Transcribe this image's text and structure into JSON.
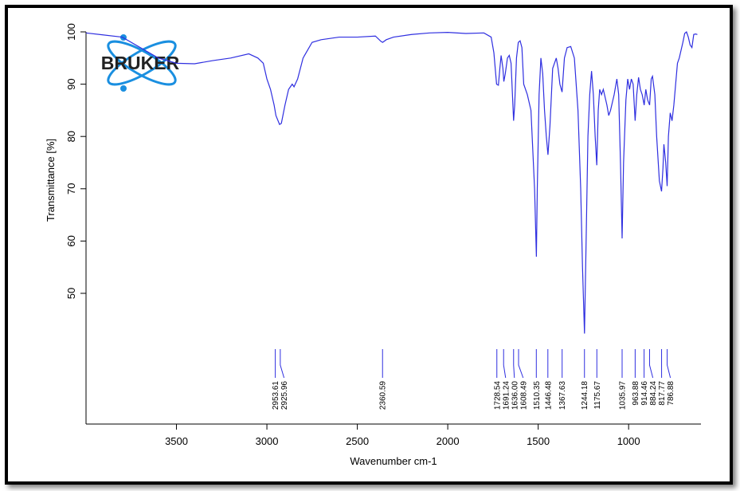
{
  "chart_data": {
    "type": "line",
    "logo_text": "BRUKER",
    "x_label": "Wavenumber cm-1",
    "y_label": "Transmittance [%]",
    "xlim": [
      4000,
      600
    ],
    "ylim": [
      25,
      100
    ],
    "xticks": [
      3500,
      3000,
      2500,
      2000,
      1500,
      1000
    ],
    "yticks": [
      50,
      60,
      70,
      80,
      90,
      100
    ],
    "color": "#2f2fe0",
    "x": [
      4000,
      3800,
      3600,
      3500,
      3400,
      3300,
      3200,
      3100,
      3050,
      3020,
      3000,
      2980,
      2960,
      2950,
      2930,
      2920,
      2900,
      2880,
      2860,
      2850,
      2830,
      2800,
      2750,
      2700,
      2600,
      2500,
      2400,
      2370,
      2360,
      2340,
      2300,
      2200,
      2100,
      2000,
      1900,
      1800,
      1760,
      1745,
      1730,
      1720,
      1712,
      1705,
      1695,
      1690,
      1682,
      1670,
      1660,
      1650,
      1636,
      1630,
      1620,
      1610,
      1600,
      1590,
      1580,
      1560,
      1540,
      1520,
      1510,
      1505,
      1495,
      1485,
      1475,
      1465,
      1455,
      1446,
      1435,
      1420,
      1400,
      1390,
      1380,
      1368,
      1355,
      1340,
      1320,
      1300,
      1280,
      1265,
      1255,
      1244,
      1235,
      1225,
      1215,
      1205,
      1195,
      1185,
      1176,
      1168,
      1160,
      1150,
      1140,
      1120,
      1110,
      1100,
      1080,
      1065,
      1055,
      1045,
      1036,
      1028,
      1015,
      1005,
      995,
      985,
      975,
      964,
      955,
      945,
      935,
      925,
      914,
      905,
      895,
      884,
      875,
      868,
      855,
      845,
      830,
      818,
      810,
      805,
      795,
      787,
      780,
      770,
      760,
      750,
      740,
      730,
      720,
      710,
      700,
      690,
      680,
      670,
      660,
      650,
      640,
      630,
      620
    ],
    "values": [
      99.8,
      99,
      95,
      94,
      93.9,
      94.5,
      95,
      95.8,
      95,
      94,
      91,
      89,
      86,
      84,
      82.3,
      82.5,
      86,
      89,
      90,
      89.5,
      91,
      95,
      98,
      98.5,
      99,
      99,
      99.2,
      98.2,
      98,
      98.5,
      99,
      99.5,
      99.8,
      99.9,
      99.7,
      99.8,
      99,
      96,
      90,
      89.8,
      93,
      95.5,
      93,
      90.5,
      92,
      95,
      95.5,
      94,
      83,
      86,
      95,
      98,
      98.3,
      97,
      90,
      88,
      85,
      70,
      57,
      70,
      88,
      95,
      92,
      85,
      80,
      76.5,
      82,
      93,
      95,
      93,
      90,
      88.5,
      95,
      97,
      97.2,
      95,
      85,
      70,
      55,
      42.3,
      60,
      80,
      88,
      92.5,
      88,
      80,
      74.5,
      85,
      89,
      88,
      89,
      86,
      84,
      85,
      88,
      91,
      88,
      75,
      60.5,
      75,
      87,
      91,
      89,
      91,
      90,
      83,
      88,
      91.3,
      89,
      88,
      86,
      89,
      87,
      86,
      91,
      91.5,
      88,
      80,
      71.5,
      69.5,
      74,
      78.5,
      75,
      70.5,
      80,
      84.5,
      83,
      86,
      90,
      94,
      95,
      96.5,
      98,
      99.7,
      100,
      99,
      97.5,
      97,
      99.5,
      99.6,
      99.5
    ],
    "peaks": [
      2953.61,
      2925.96,
      2360.59,
      1728.54,
      1691.24,
      {
        "value": 1636,
        "label": "1636.00"
      },
      1608.49,
      1510.35,
      1446.48,
      1367.63,
      1244.18,
      1175.67,
      1035.97,
      963.88,
      914.46,
      884.24,
      817.77,
      786.88
    ]
  }
}
